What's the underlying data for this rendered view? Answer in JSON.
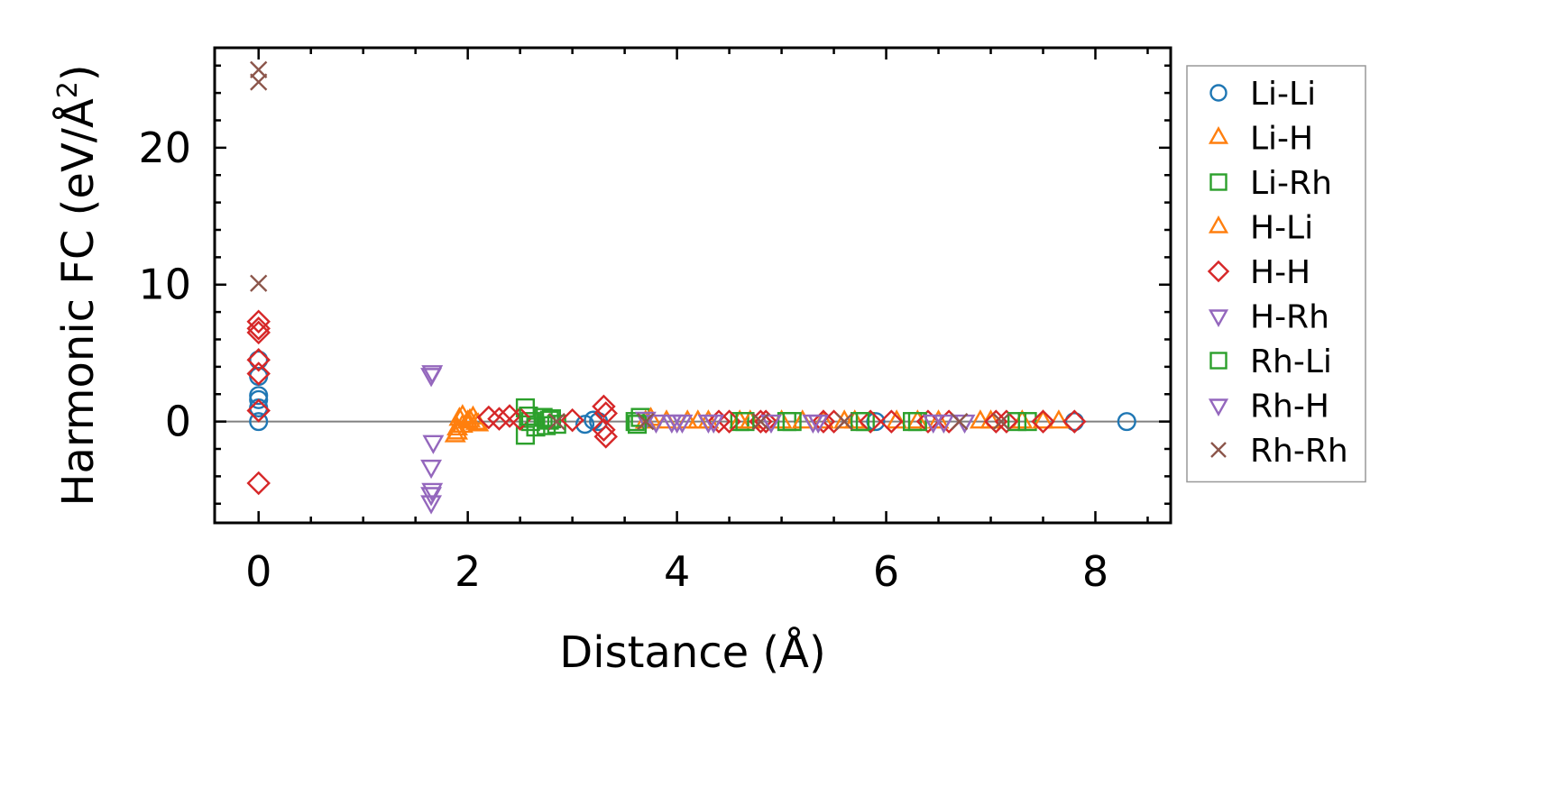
{
  "chart_data": {
    "type": "scatter",
    "xlabel": "Distance (Å)",
    "ylabel_main": "Harmonic FC (eV/Å",
    "ylabel_sup": "2",
    "ylabel_close": ")",
    "xlim": [
      -0.42,
      8.72
    ],
    "ylim": [
      -7.4,
      27.3
    ],
    "xticks": [
      0,
      2,
      4,
      6,
      8
    ],
    "yticks": [
      0,
      10,
      20
    ],
    "xticks_minor_step": 0.5,
    "yticks_minor_step": 2,
    "zero_line": true,
    "grid": false,
    "legend_position": "outside-right",
    "series": [
      {
        "name": "Li-Li",
        "marker": "circle",
        "color": "#1f77b4",
        "points": [
          [
            0,
            0
          ],
          [
            0,
            1
          ],
          [
            0,
            1.6
          ],
          [
            0,
            1.9
          ],
          [
            0,
            3.3
          ],
          [
            0,
            4.5
          ],
          [
            3.12,
            -0.2
          ],
          [
            3.2,
            0.1
          ],
          [
            3.25,
            0
          ],
          [
            5.9,
            0
          ],
          [
            7.8,
            0
          ],
          [
            8.3,
            0
          ]
        ]
      },
      {
        "name": "Li-H",
        "marker": "triangle-up",
        "color": "#ff7f0e",
        "points": [
          [
            1.88,
            -1.0
          ],
          [
            1.9,
            -0.5
          ],
          [
            1.92,
            0.2
          ],
          [
            1.95,
            0.4
          ],
          [
            2.0,
            0
          ],
          [
            2.05,
            0.3
          ],
          [
            2.1,
            -0.2
          ],
          [
            3.7,
            0
          ],
          [
            3.9,
            0
          ],
          [
            4.1,
            0
          ],
          [
            4.3,
            0
          ],
          [
            4.6,
            0
          ],
          [
            5.0,
            0
          ],
          [
            5.4,
            0
          ],
          [
            5.7,
            0
          ],
          [
            6.1,
            0
          ],
          [
            6.5,
            0
          ],
          [
            6.9,
            0
          ],
          [
            7.3,
            0
          ],
          [
            7.65,
            0
          ]
        ]
      },
      {
        "name": "Li-Rh",
        "marker": "square",
        "color": "#2ca02c",
        "points": [
          [
            2.55,
            1.0
          ],
          [
            2.55,
            -1.0
          ],
          [
            2.6,
            0
          ],
          [
            2.72,
            0.3
          ],
          [
            2.75,
            -0.3
          ],
          [
            2.8,
            0.2
          ],
          [
            2.85,
            -0.2
          ],
          [
            3.6,
            0
          ],
          [
            3.65,
            0.3
          ],
          [
            4.6,
            0
          ],
          [
            5.05,
            0
          ],
          [
            5.8,
            0
          ],
          [
            6.25,
            0
          ],
          [
            7.35,
            0
          ]
        ]
      },
      {
        "name": "H-Li",
        "marker": "triangle-up",
        "color": "#ff7f0e",
        "points": [
          [
            1.9,
            -0.8
          ],
          [
            1.95,
            -0.3
          ],
          [
            2.02,
            0.1
          ],
          [
            2.08,
            -0.1
          ],
          [
            3.75,
            0.2
          ],
          [
            4.2,
            0
          ],
          [
            4.7,
            0
          ],
          [
            5.2,
            0
          ],
          [
            5.6,
            0
          ],
          [
            6.3,
            0
          ],
          [
            7.0,
            0
          ],
          [
            7.5,
            0
          ]
        ]
      },
      {
        "name": "H-H",
        "marker": "diamond",
        "color": "#d62728",
        "points": [
          [
            0,
            -4.5
          ],
          [
            0,
            0.8
          ],
          [
            0,
            3.5
          ],
          [
            0,
            4.5
          ],
          [
            0,
            6.5
          ],
          [
            0,
            6.8
          ],
          [
            0,
            7.3
          ],
          [
            2.2,
            0.3
          ],
          [
            2.3,
            0.2
          ],
          [
            2.4,
            0.4
          ],
          [
            2.5,
            0.2
          ],
          [
            3.0,
            0.1
          ],
          [
            3.3,
            1.1
          ],
          [
            3.32,
            0.6
          ],
          [
            3.3,
            -0.6
          ],
          [
            3.32,
            -1.1
          ],
          [
            4.4,
            0
          ],
          [
            4.5,
            0
          ],
          [
            4.8,
            0
          ],
          [
            4.85,
            0
          ],
          [
            5.4,
            0
          ],
          [
            5.5,
            0
          ],
          [
            5.85,
            0
          ],
          [
            6.05,
            0
          ],
          [
            6.4,
            0
          ],
          [
            6.6,
            0
          ],
          [
            7.05,
            0
          ],
          [
            7.15,
            0
          ],
          [
            7.5,
            0
          ],
          [
            7.8,
            0
          ]
        ]
      },
      {
        "name": "H-Rh",
        "marker": "triangle-down",
        "color": "#9467bd",
        "points": [
          [
            1.65,
            3.4
          ],
          [
            1.67,
            -1.5
          ],
          [
            1.65,
            -3.3
          ],
          [
            1.65,
            -5.3
          ],
          [
            1.65,
            -5.9
          ],
          [
            3.7,
            0.2
          ],
          [
            3.95,
            0
          ],
          [
            4.05,
            0
          ],
          [
            4.3,
            0
          ],
          [
            4.9,
            0
          ],
          [
            5.35,
            0
          ],
          [
            6.55,
            0
          ]
        ]
      },
      {
        "name": "Rh-Li",
        "marker": "square",
        "color": "#2ca02c",
        "points": [
          [
            2.58,
            0.4
          ],
          [
            2.65,
            -0.4
          ],
          [
            2.78,
            0.1
          ],
          [
            3.62,
            -0.2
          ],
          [
            4.65,
            0
          ],
          [
            5.1,
            0
          ],
          [
            5.75,
            0
          ],
          [
            6.3,
            0
          ],
          [
            7.25,
            0
          ]
        ]
      },
      {
        "name": "Rh-H",
        "marker": "triangle-down",
        "color": "#9467bd",
        "points": [
          [
            1.66,
            3.6
          ],
          [
            1.66,
            -5.0
          ],
          [
            3.8,
            0
          ],
          [
            4.0,
            0
          ],
          [
            4.35,
            0
          ],
          [
            5.3,
            0
          ],
          [
            6.45,
            0
          ],
          [
            6.75,
            0
          ]
        ]
      },
      {
        "name": "Rh-Rh",
        "marker": "x",
        "color": "#8c564b",
        "points": [
          [
            0,
            25.7
          ],
          [
            0,
            24.8
          ],
          [
            0,
            10.1
          ],
          [
            2.85,
            0
          ],
          [
            3.7,
            0
          ],
          [
            4.8,
            0
          ],
          [
            5.6,
            0
          ],
          [
            6.7,
            0
          ],
          [
            7.1,
            0
          ]
        ]
      }
    ]
  }
}
